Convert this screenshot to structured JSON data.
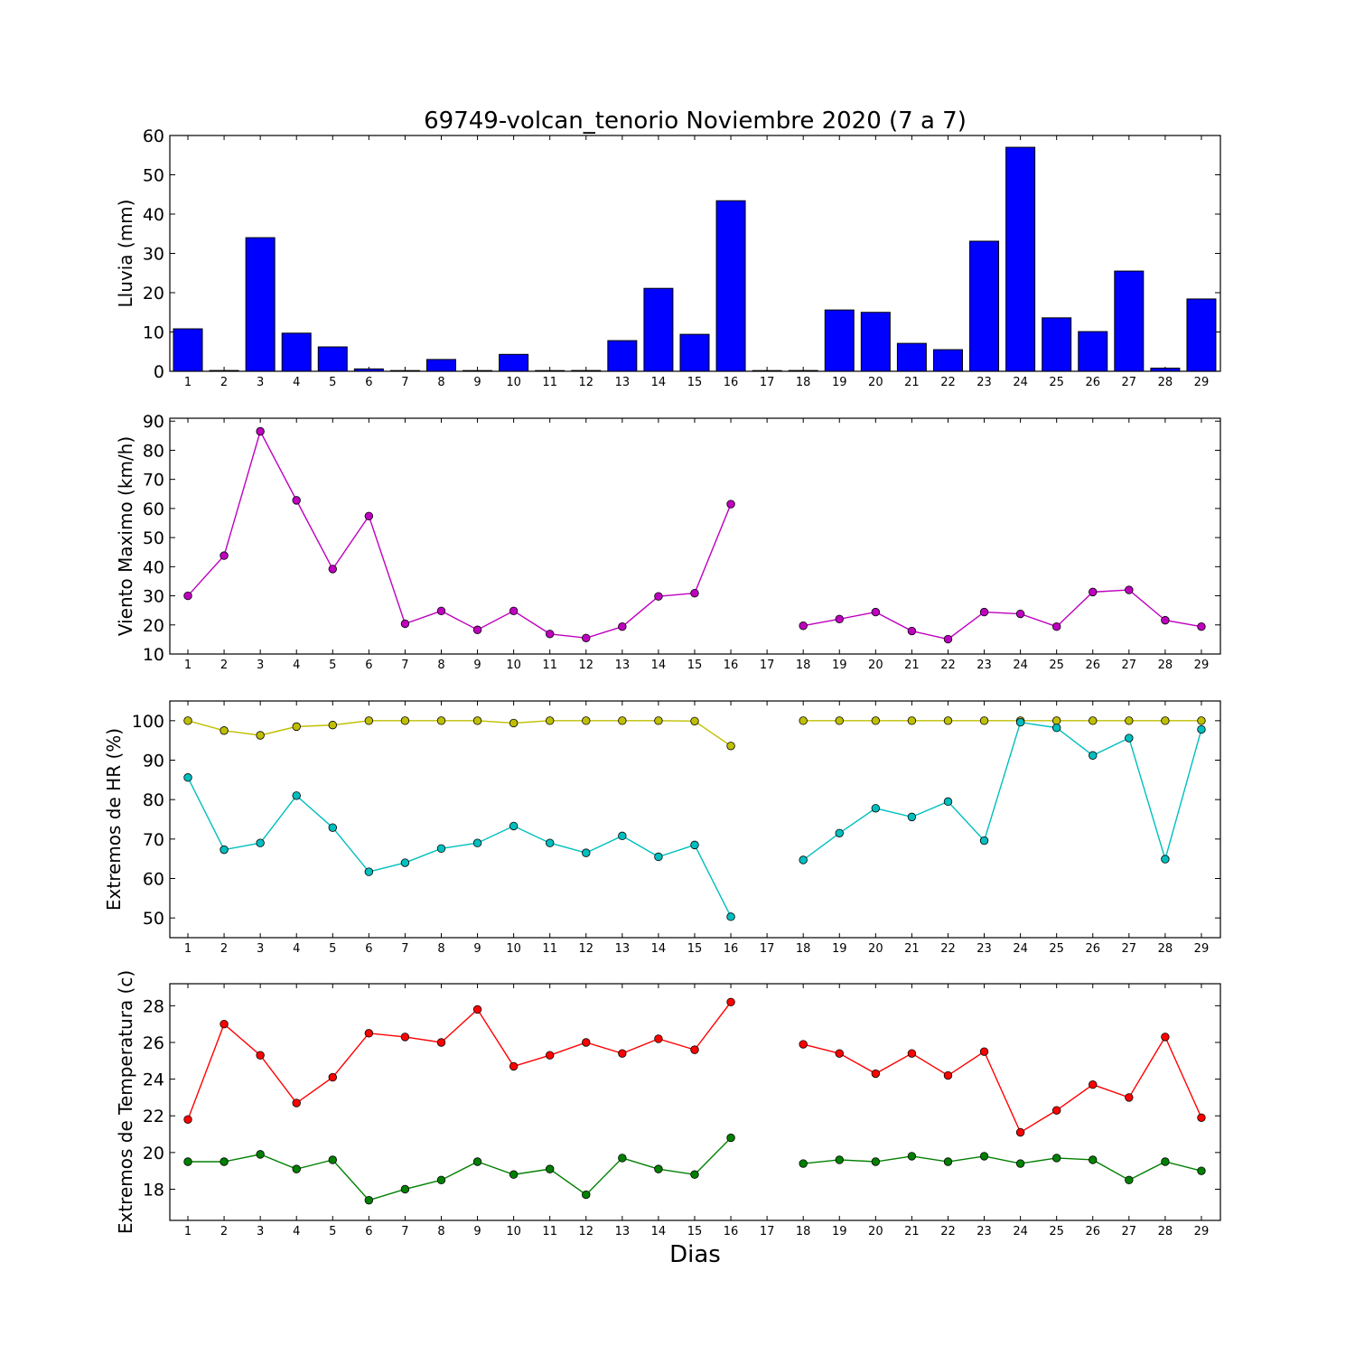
{
  "chart_data": [
    {
      "type": "bar",
      "title": "69749-volcan_tenorio Noviembre 2020  (7 a 7)",
      "ylabel": "Lluvia (mm)",
      "xlabel": "",
      "ylim": [
        0,
        60
      ],
      "yticks": [
        0,
        10,
        20,
        30,
        40,
        50,
        60
      ],
      "categories": [
        "1",
        "2",
        "3",
        "4",
        "5",
        "6",
        "7",
        "8",
        "9",
        "10",
        "11",
        "12",
        "13",
        "14",
        "15",
        "16",
        "17",
        "18",
        "19",
        "20",
        "21",
        "22",
        "23",
        "24",
        "25",
        "26",
        "27",
        "28",
        "29"
      ],
      "series": [
        {
          "color": "#0000ff",
          "values": [
            10.8,
            0.2,
            34.0,
            9.7,
            6.2,
            0.6,
            0.0,
            3.0,
            0.0,
            4.3,
            0.0,
            0.2,
            7.8,
            21.1,
            9.4,
            43.4,
            0.0,
            0.2,
            15.6,
            15.0,
            7.1,
            5.5,
            33.1,
            57.0,
            13.6,
            10.1,
            25.5,
            0.8,
            18.4
          ]
        }
      ]
    },
    {
      "type": "line",
      "title": "",
      "ylabel": "Viento Maximo (km/h)",
      "xlabel": "",
      "ylim": [
        10,
        91
      ],
      "yticks": [
        10,
        20,
        30,
        40,
        50,
        60,
        70,
        80,
        90
      ],
      "categories": [
        "1",
        "2",
        "3",
        "4",
        "5",
        "6",
        "7",
        "8",
        "9",
        "10",
        "11",
        "12",
        "13",
        "14",
        "15",
        "16",
        "17",
        "18",
        "19",
        "20",
        "21",
        "22",
        "23",
        "24",
        "25",
        "26",
        "27",
        "28",
        "29"
      ],
      "series": [
        {
          "color": "#bf00bf",
          "values": [
            30.0,
            43.8,
            86.5,
            62.8,
            39.2,
            57.4,
            20.4,
            24.8,
            18.3,
            24.8,
            16.9,
            15.5,
            19.4,
            29.8,
            30.9,
            61.5,
            null,
            19.7,
            22.0,
            24.4,
            17.9,
            15.1,
            24.4,
            23.8,
            19.4,
            31.3,
            32.0,
            21.6,
            19.4
          ]
        }
      ]
    },
    {
      "type": "line",
      "title": "",
      "ylabel": "Extremos de HR (%)",
      "xlabel": "",
      "ylim": [
        45,
        105
      ],
      "yticks": [
        50,
        60,
        70,
        80,
        90,
        100
      ],
      "categories": [
        "1",
        "2",
        "3",
        "4",
        "5",
        "6",
        "7",
        "8",
        "9",
        "10",
        "11",
        "12",
        "13",
        "14",
        "15",
        "16",
        "17",
        "18",
        "19",
        "20",
        "21",
        "22",
        "23",
        "24",
        "25",
        "26",
        "27",
        "28",
        "29"
      ],
      "series": [
        {
          "color": "#bfbf00",
          "values": [
            100.0,
            97.5,
            96.3,
            98.5,
            98.9,
            100.0,
            100.0,
            100.0,
            100.0,
            99.4,
            100.0,
            100.0,
            100.0,
            100.0,
            99.9,
            93.6,
            null,
            100.0,
            100.0,
            100.0,
            100.0,
            100.0,
            100.0,
            100.0,
            100.0,
            100.0,
            100.0,
            100.0,
            100.0
          ]
        },
        {
          "color": "#00bfbf",
          "values": [
            85.6,
            67.3,
            69.0,
            81.0,
            72.9,
            61.7,
            64.0,
            67.6,
            69.0,
            73.3,
            69.0,
            66.5,
            70.8,
            65.5,
            68.5,
            50.3,
            null,
            64.7,
            71.5,
            77.8,
            75.6,
            79.5,
            69.6,
            99.6,
            98.2,
            91.2,
            95.6,
            64.9,
            97.8
          ]
        }
      ]
    },
    {
      "type": "line",
      "title": "",
      "ylabel": "Extremos de Temperatura (c)",
      "xlabel": "Dias",
      "ylim": [
        16.3,
        29.2
      ],
      "yticks": [
        18,
        20,
        22,
        24,
        26,
        28
      ],
      "categories": [
        "1",
        "2",
        "3",
        "4",
        "5",
        "6",
        "7",
        "8",
        "9",
        "10",
        "11",
        "12",
        "13",
        "14",
        "15",
        "16",
        "17",
        "18",
        "19",
        "20",
        "21",
        "22",
        "23",
        "24",
        "25",
        "26",
        "27",
        "28",
        "29"
      ],
      "series": [
        {
          "color": "#ff0000",
          "values": [
            21.8,
            27.0,
            25.3,
            22.7,
            24.1,
            26.5,
            26.3,
            26.0,
            27.8,
            24.7,
            25.3,
            26.0,
            25.4,
            26.2,
            25.6,
            28.2,
            null,
            25.9,
            25.4,
            24.3,
            25.4,
            24.2,
            25.5,
            21.1,
            22.3,
            23.7,
            23.0,
            26.3,
            21.9
          ]
        },
        {
          "color": "#008000",
          "values": [
            19.5,
            19.5,
            19.9,
            19.1,
            19.6,
            17.4,
            18.0,
            18.5,
            19.5,
            18.8,
            19.1,
            17.7,
            19.7,
            19.1,
            18.8,
            20.8,
            null,
            19.4,
            19.6,
            19.5,
            19.8,
            19.5,
            19.8,
            19.4,
            19.7,
            19.6,
            18.5,
            19.5,
            19.0
          ]
        }
      ]
    }
  ]
}
